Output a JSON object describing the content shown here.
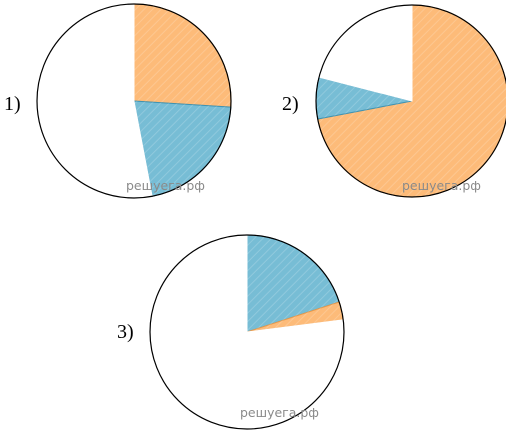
{
  "watermark": "решуега.рф",
  "colors": {
    "orange": "#fdbb79",
    "blue": "#77bdd5",
    "white": "#ffffff",
    "outline": "#000000",
    "watermark": "#8a8a8a"
  },
  "chart_data": [
    {
      "type": "pie",
      "label": "1)",
      "start_angle_deg": 0,
      "direction": "clockwise",
      "slices": [
        {
          "color": "orange",
          "value": 26
        },
        {
          "color": "blue",
          "value": 21
        },
        {
          "color": "white",
          "value": 53
        }
      ]
    },
    {
      "type": "pie",
      "label": "2)",
      "start_angle_deg": 0,
      "direction": "clockwise",
      "slices": [
        {
          "color": "orange",
          "value": 72
        },
        {
          "color": "blue",
          "value": 7
        },
        {
          "color": "white",
          "value": 21
        }
      ]
    },
    {
      "type": "pie",
      "label": "3)",
      "start_angle_deg": 0,
      "direction": "clockwise",
      "slices": [
        {
          "color": "blue",
          "value": 20
        },
        {
          "color": "orange",
          "value": 3
        },
        {
          "color": "white",
          "value": 77
        }
      ]
    }
  ]
}
